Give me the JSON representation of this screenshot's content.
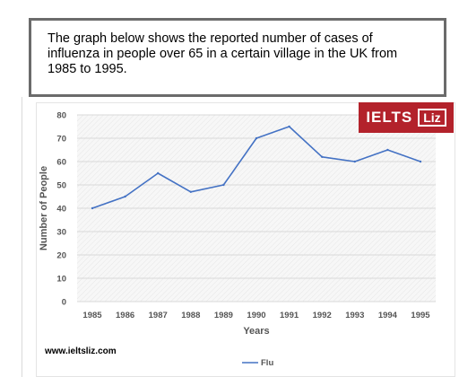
{
  "prompt": {
    "line1": "The graph below shows the reported number of cases of",
    "line2": "influenza in people over 65 in a certain village in the UK from",
    "line3": "1985 to 1995."
  },
  "logo": {
    "main": "IELTS",
    "box": "Liz",
    "bg_color": "#b3222b"
  },
  "watermark": "www.ieltsliz.com",
  "chart_data": {
    "type": "line",
    "title": "",
    "xlabel": "Years",
    "ylabel": "Number of People",
    "categories": [
      "1985",
      "1986",
      "1987",
      "1988",
      "1989",
      "1990",
      "1991",
      "1992",
      "1993",
      "1994",
      "1995"
    ],
    "series": [
      {
        "name": "Flu",
        "color": "#4472c4",
        "values": [
          40,
          45,
          55,
          47,
          50,
          70,
          75,
          62,
          60,
          65,
          60
        ]
      }
    ],
    "ylim": [
      0,
      80
    ],
    "yticks": [
      0,
      10,
      20,
      30,
      40,
      50,
      60,
      70,
      80
    ],
    "grid": true,
    "legend": "bottom"
  }
}
